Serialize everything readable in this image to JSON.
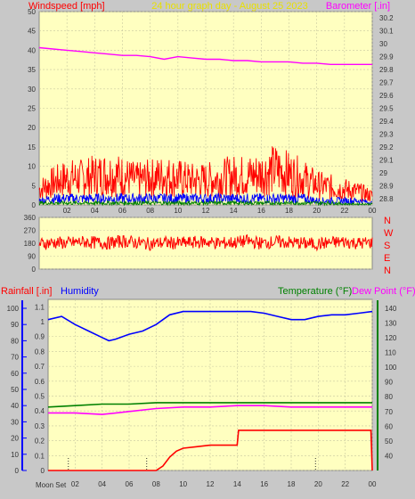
{
  "header": {
    "windspeed_label": "Windspeed [mph]",
    "graph_title": "24 hour graph day - August 25 2023",
    "barometer_label": "Barometer [.in]"
  },
  "lower_header": {
    "rainfall_label": "Rainfall [.in]",
    "humidity_label": "Humidity",
    "temperature_label": "Temperature (°F)",
    "dewpoint_label": "Dew Point (°F)"
  },
  "moon_label": "Moon Set",
  "compass_letters": [
    "N",
    "W",
    "S",
    "E",
    "N"
  ],
  "colors": {
    "background": "#c8c8c8",
    "plot_bg": "#ffffc0",
    "wind": "#ff0000",
    "gust": "#0000ff",
    "avg": "#008000",
    "barometer": "#ff00ff",
    "humidity": "#0000ff",
    "temperature": "#008000",
    "dewpoint": "#ff00ff",
    "rainfall": "#ff0000"
  },
  "chart_data": [
    {
      "type": "line",
      "x_ticks": [
        "02",
        "04",
        "06",
        "08",
        "10",
        "12",
        "14",
        "16",
        "18",
        "20",
        "22",
        "00"
      ],
      "title": "24 hour graph day - August 25 2023",
      "ylabel": "Windspeed [mph]",
      "ylim": [
        0,
        50
      ],
      "y_ticks": [
        0,
        5,
        10,
        15,
        20,
        25,
        30,
        35,
        40,
        45,
        50
      ],
      "y2label": "Barometer [.in]",
      "y2lim": [
        28.75,
        30.25
      ],
      "y2_ticks": [
        "28.8",
        "28.9",
        "29",
        "29.1",
        "29.2",
        "29.3",
        "29.4",
        "29.5",
        "29.6",
        "29.7",
        "29.8",
        "29.9",
        "30",
        "30.1",
        "30.2"
      ],
      "grid": true,
      "series": [
        {
          "name": "Barometer [.in]",
          "axis": "right",
          "x": [
            0,
            1,
            2,
            3,
            4,
            5,
            6,
            7,
            8,
            9,
            10,
            11,
            12,
            13,
            14,
            15,
            16,
            17,
            18,
            19,
            20,
            21,
            22,
            23,
            24
          ],
          "y": [
            29.97,
            29.96,
            29.95,
            29.94,
            29.93,
            29.92,
            29.91,
            29.91,
            29.9,
            29.88,
            29.9,
            29.89,
            29.88,
            29.88,
            29.87,
            29.87,
            29.86,
            29.86,
            29.86,
            29.85,
            29.85,
            29.84,
            29.84,
            29.84,
            29.84
          ]
        },
        {
          "name": "Wind gust (approx. envelope)",
          "x": [
            0,
            1,
            2,
            3,
            4,
            5,
            6,
            7,
            8,
            9,
            10,
            11,
            12,
            13,
            14,
            15,
            16,
            17,
            18,
            19,
            20,
            21,
            22,
            23,
            24
          ],
          "y": [
            7,
            10,
            12,
            12,
            13,
            14,
            13,
            11,
            12,
            13,
            12,
            11,
            11,
            12,
            13,
            13,
            14,
            16,
            14,
            12,
            9,
            8,
            7,
            6,
            4
          ]
        },
        {
          "name": "Wind speed (approx.)",
          "x": [
            0,
            1,
            2,
            3,
            4,
            5,
            6,
            7,
            8,
            9,
            10,
            11,
            12,
            13,
            14,
            15,
            16,
            17,
            18,
            19,
            20,
            21,
            22,
            23,
            24
          ],
          "y": [
            2,
            3,
            3,
            3,
            3,
            3,
            3,
            3,
            3,
            3,
            3,
            3,
            3,
            3,
            3,
            3,
            3,
            3,
            3,
            3,
            2,
            2,
            2,
            2,
            1
          ]
        },
        {
          "name": "Wind average (approx.)",
          "x": [
            0,
            1,
            2,
            3,
            4,
            5,
            6,
            7,
            8,
            9,
            10,
            11,
            12,
            13,
            14,
            15,
            16,
            17,
            18,
            19,
            20,
            21,
            22,
            23,
            24
          ],
          "y": [
            1,
            1,
            1,
            1,
            1,
            1,
            1,
            1,
            1,
            1,
            1,
            1,
            1,
            1,
            1,
            1,
            1,
            1,
            1,
            1,
            1,
            1,
            0.5,
            0.5,
            0.5
          ]
        }
      ]
    },
    {
      "type": "line",
      "ylim": [
        0,
        360
      ],
      "y_ticks": [
        0,
        90,
        180,
        270,
        360
      ],
      "series": [
        {
          "name": "Wind direction (approx.)",
          "x": [
            0,
            1,
            2,
            3,
            4,
            5,
            6,
            7,
            8,
            9,
            10,
            11,
            12,
            13,
            14,
            15,
            16,
            17,
            18,
            19,
            20,
            21,
            22,
            23,
            24
          ],
          "y": [
            175,
            185,
            180,
            190,
            185,
            180,
            195,
            185,
            175,
            185,
            180,
            185,
            190,
            180,
            185,
            195,
            180,
            190,
            185,
            180,
            175,
            185,
            190,
            180,
            185
          ]
        }
      ]
    },
    {
      "type": "line",
      "ylabel": "Rainfall [.in]",
      "ylim": [
        0,
        1.15
      ],
      "y_ticks": [
        "0",
        "0.1",
        "0.2",
        "0.3",
        "0.4",
        "0.5",
        "0.6",
        "0.7",
        "0.8",
        "0.9",
        "1",
        "1.1"
      ],
      "y_ticks_humidity": [
        0,
        10,
        20,
        30,
        40,
        50,
        60,
        70,
        80,
        90,
        100
      ],
      "y2label": "Temperature (°F)",
      "y2lim": [
        30,
        146
      ],
      "y2_ticks": [
        40,
        50,
        60,
        70,
        80,
        90,
        100,
        110,
        120,
        130,
        140
      ],
      "series": [
        {
          "name": "Humidity",
          "x": [
            0,
            1,
            2,
            3,
            4,
            4.5,
            5,
            6,
            7,
            8,
            9,
            10,
            11,
            12,
            13,
            14,
            15,
            16,
            17,
            18,
            19,
            20,
            21,
            22,
            23,
            24
          ],
          "y": [
            93,
            95,
            90,
            86,
            82,
            80,
            81,
            84,
            86,
            90,
            96,
            98,
            98,
            98,
            98,
            98,
            98,
            97,
            95,
            93,
            93,
            95,
            96,
            96,
            97,
            98
          ]
        },
        {
          "name": "Temperature (°F)",
          "x": [
            0,
            2,
            4,
            6,
            8,
            10,
            12,
            14,
            16,
            18,
            20,
            22,
            24
          ],
          "y": [
            73,
            74,
            75,
            75,
            76,
            76,
            76,
            76,
            76,
            76,
            76,
            76,
            76
          ]
        },
        {
          "name": "Dew Point (°F)",
          "x": [
            0,
            2,
            4,
            6,
            8,
            10,
            12,
            14,
            16,
            18,
            20,
            22,
            24
          ],
          "y": [
            69,
            69,
            68,
            70,
            72,
            73,
            73,
            74,
            74,
            73,
            73,
            73,
            73
          ]
        },
        {
          "name": "Rainfall [.in]",
          "x": [
            0,
            7,
            8,
            8.5,
            9,
            9.5,
            10,
            11,
            12,
            13,
            14,
            14.1,
            15,
            16,
            17,
            18,
            19,
            20,
            21,
            22,
            23.9,
            24
          ],
          "y": [
            0,
            0,
            0,
            0.03,
            0.09,
            0.13,
            0.15,
            0.16,
            0.17,
            0.17,
            0.17,
            0.27,
            0.27,
            0.27,
            0.27,
            0.27,
            0.27,
            0.27,
            0.27,
            0.27,
            0.27,
            0
          ]
        }
      ]
    }
  ]
}
